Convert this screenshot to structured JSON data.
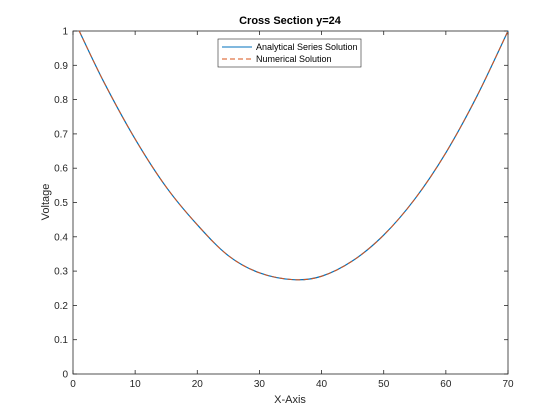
{
  "chart_data": {
    "type": "line",
    "title": "Cross Section y=24",
    "xlabel": "X-Axis",
    "ylabel": "Voltage",
    "xlim": [
      0,
      70
    ],
    "ylim": [
      0,
      1
    ],
    "x_ticks": [
      "0",
      "10",
      "20",
      "30",
      "40",
      "50",
      "60",
      "70"
    ],
    "y_ticks": [
      "0",
      "0.1",
      "0.2",
      "0.3",
      "0.4",
      "0.5",
      "0.6",
      "0.7",
      "0.8",
      "0.9",
      "1"
    ],
    "grid": false,
    "legend_position": "top-center",
    "series": [
      {
        "name": "Analytical Series Solution",
        "color": "#0072BD",
        "style": "solid",
        "x": [
          1,
          5,
          10,
          15,
          20,
          25,
          30,
          35.5,
          40,
          45,
          50,
          55,
          60,
          65,
          70
        ],
        "y": [
          1.0,
          0.85,
          0.685,
          0.545,
          0.435,
          0.345,
          0.295,
          0.275,
          0.285,
          0.33,
          0.405,
          0.51,
          0.645,
          0.81,
          1.0
        ]
      },
      {
        "name": "Numerical Solution",
        "color": "#D95319",
        "style": "dashed",
        "x": [
          1,
          5,
          10,
          15,
          20,
          25,
          30,
          35.5,
          40,
          45,
          50,
          55,
          60,
          65,
          70
        ],
        "y": [
          1.0,
          0.85,
          0.685,
          0.545,
          0.435,
          0.345,
          0.295,
          0.275,
          0.285,
          0.33,
          0.405,
          0.51,
          0.645,
          0.81,
          1.0
        ]
      }
    ]
  }
}
